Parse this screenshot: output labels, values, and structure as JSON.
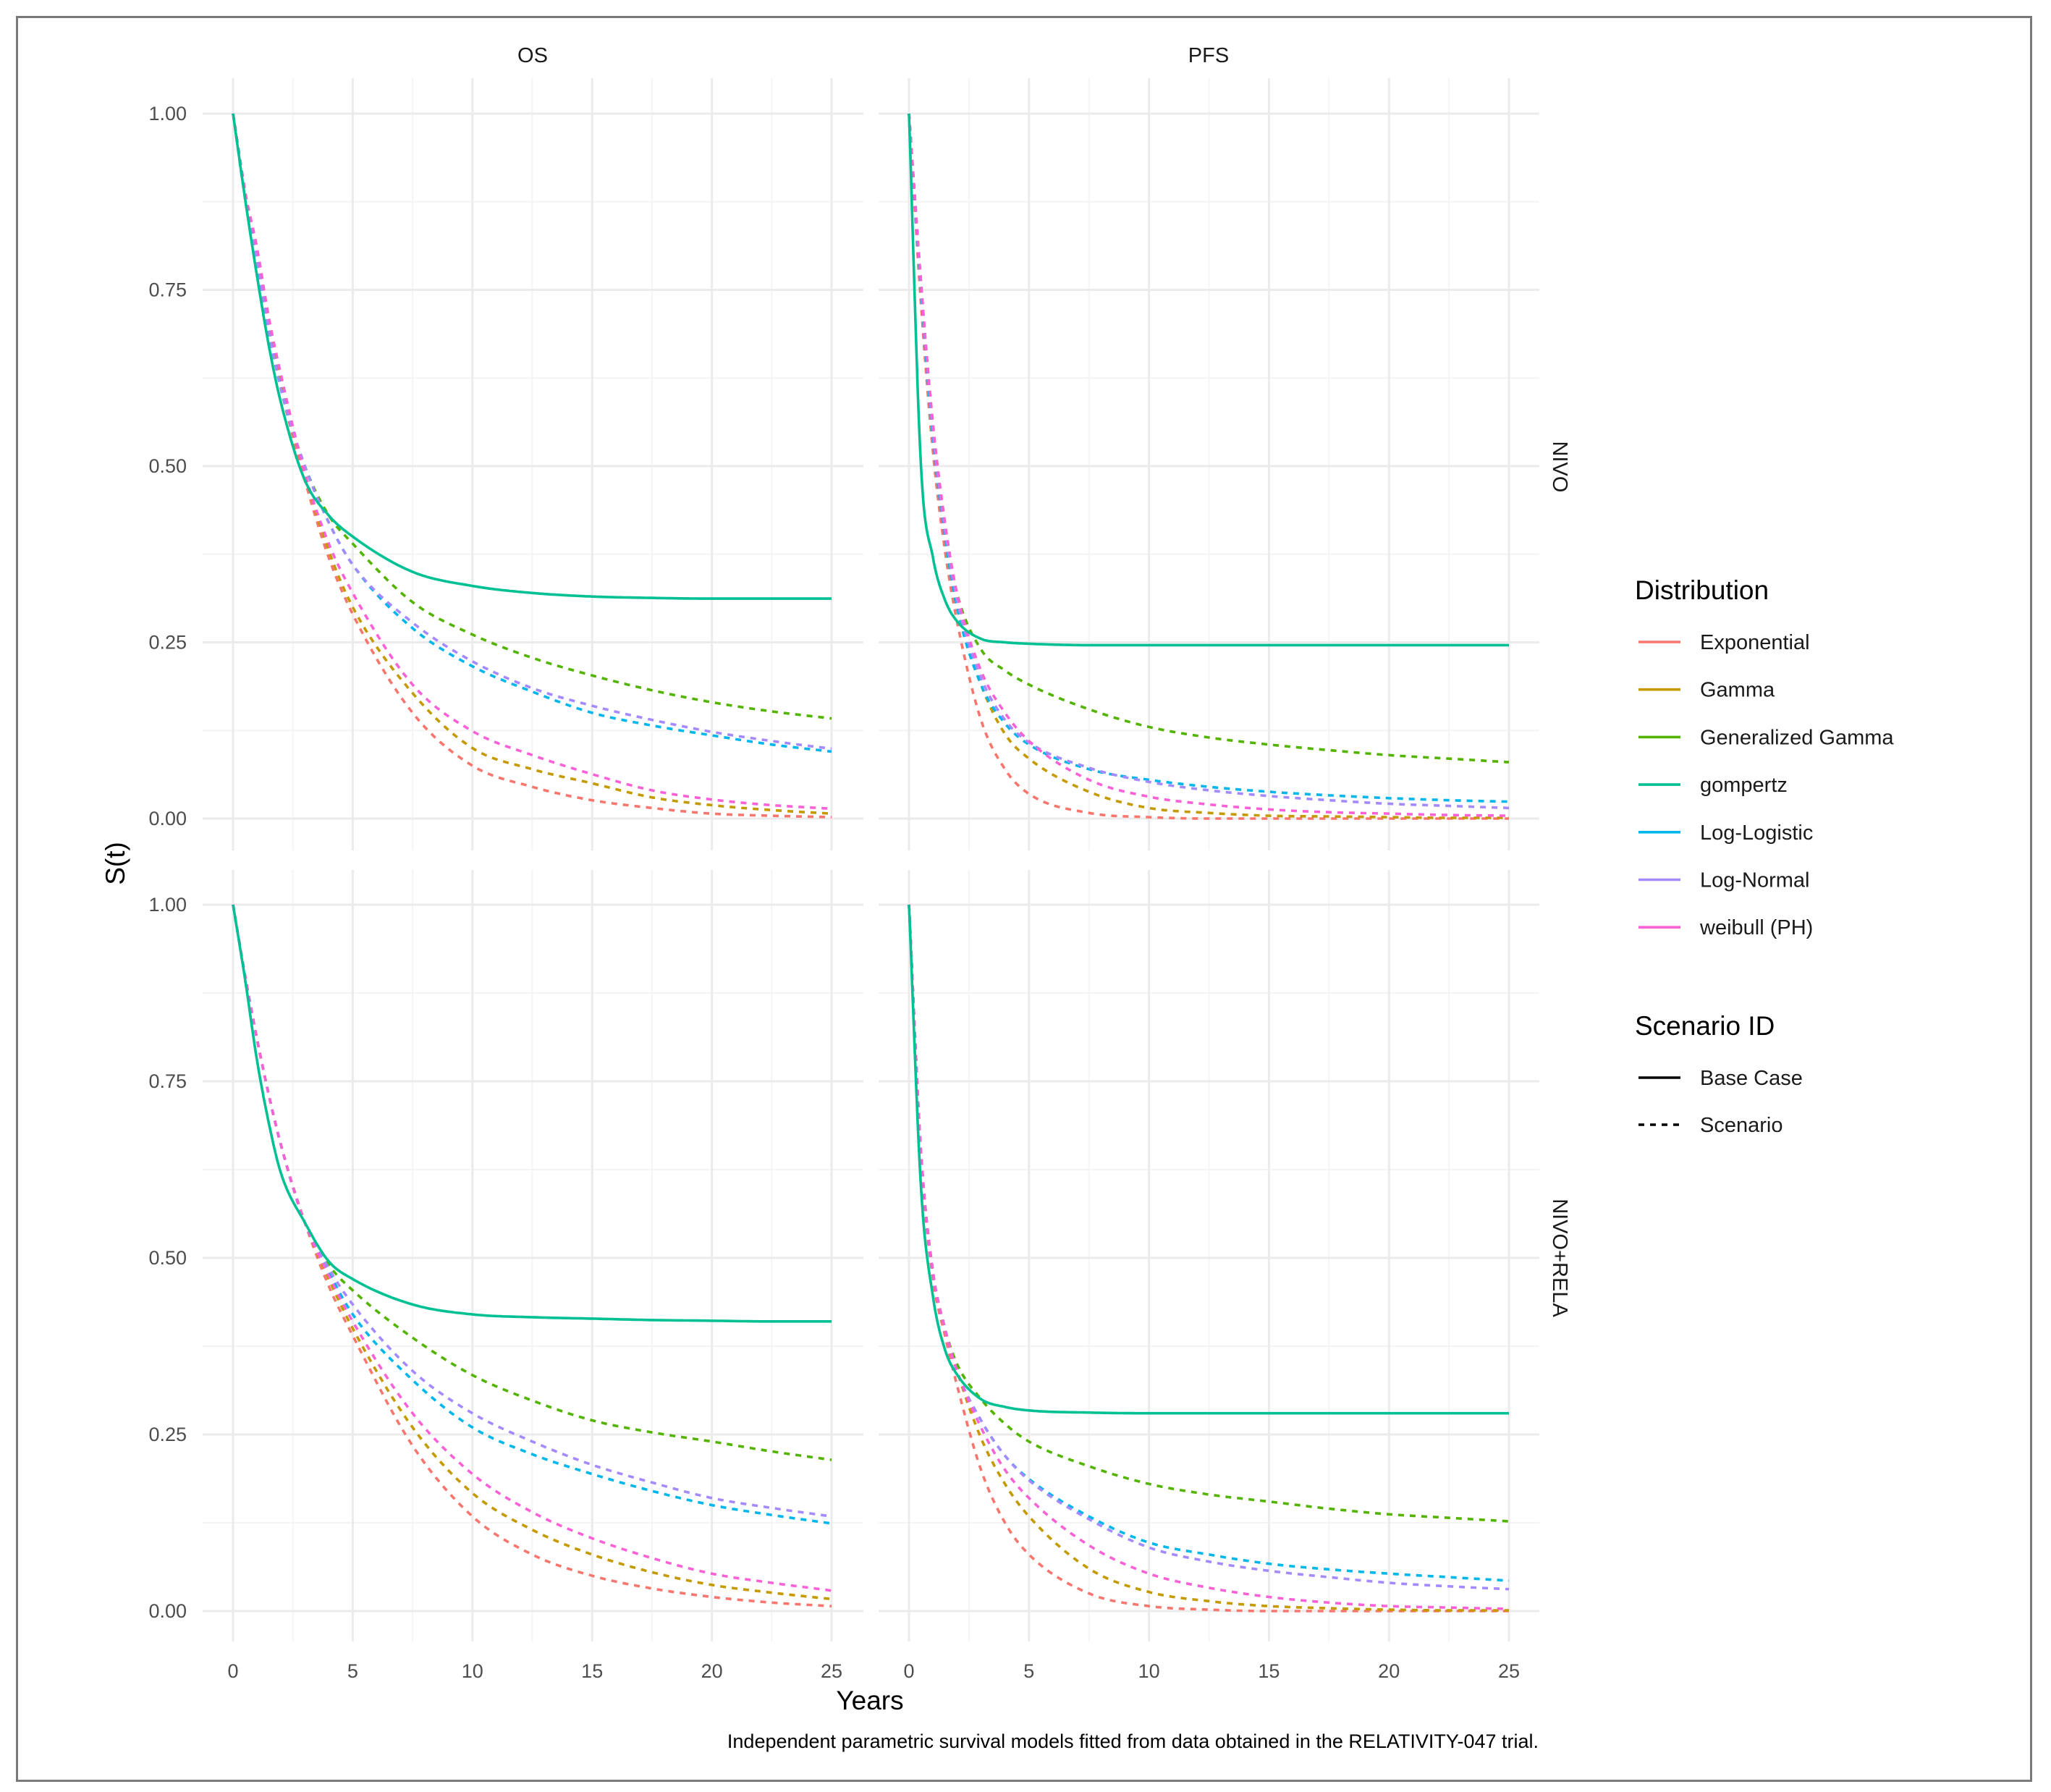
{
  "axes": {
    "xlabel": "Years",
    "ylabel": "S(t)",
    "xlim": [
      0,
      25
    ],
    "ylim": [
      0,
      1
    ],
    "x_ticks": [
      "0",
      "5",
      "10",
      "15",
      "20",
      "25"
    ],
    "y_ticks": [
      "0.00",
      "0.25",
      "0.50",
      "0.75",
      "1.00"
    ],
    "grid": true
  },
  "facets": {
    "columns": [
      "OS",
      "PFS"
    ],
    "rows": [
      "NIVO",
      "NIVO+RELA"
    ]
  },
  "legend": {
    "placement": "right",
    "distribution_title": "Distribution",
    "distribution_items": [
      {
        "label": "Exponential",
        "color": "#F8766D"
      },
      {
        "label": "Gamma",
        "color": "#C49A00"
      },
      {
        "label": "Generalized Gamma",
        "color": "#53B400"
      },
      {
        "label": "gompertz",
        "color": "#00C094"
      },
      {
        "label": "Log-Logistic",
        "color": "#00B6EB"
      },
      {
        "label": "Log-Normal",
        "color": "#A58AFF"
      },
      {
        "label": "weibull (PH)",
        "color": "#FB61D7"
      }
    ],
    "scenario_title": "Scenario ID",
    "scenario_items": [
      {
        "label": "Base Case",
        "linetype": "solid"
      },
      {
        "label": "Scenario",
        "linetype": "dashed"
      }
    ]
  },
  "caption": "Independent parametric survival models fitted from data obtained in the RELATIVITY-047 trial.",
  "chart_data": [
    {
      "type": "line",
      "column": "OS",
      "row": "NIVO",
      "x": [
        0,
        0.5,
        1,
        1.5,
        2,
        3,
        4,
        5,
        7.5,
        10,
        12.5,
        15,
        17.5,
        20,
        22.5,
        25
      ],
      "series": [
        {
          "name": "Exponential",
          "scenario": "Scenario",
          "values": [
            1,
            0.88,
            0.78,
            0.69,
            0.61,
            0.48,
            0.37,
            0.29,
            0.15,
            0.075,
            0.045,
            0.026,
            0.015,
            0.007,
            0.004,
            0.002
          ]
        },
        {
          "name": "Gamma",
          "scenario": "Scenario",
          "values": [
            1,
            0.89,
            0.8,
            0.7,
            0.62,
            0.49,
            0.38,
            0.3,
            0.178,
            0.1,
            0.07,
            0.05,
            0.03,
            0.019,
            0.012,
            0.007
          ]
        },
        {
          "name": "Generalized Gamma",
          "scenario": "Scenario",
          "values": [
            1,
            0.89,
            0.79,
            0.69,
            0.61,
            0.5,
            0.43,
            0.39,
            0.307,
            0.261,
            0.228,
            0.203,
            0.182,
            0.165,
            0.152,
            0.142
          ]
        },
        {
          "name": "gompertz",
          "scenario": "Base Case",
          "values": [
            1,
            0.88,
            0.77,
            0.67,
            0.59,
            0.48,
            0.43,
            0.4,
            0.35,
            0.33,
            0.32,
            0.315,
            0.313,
            0.312,
            0.312,
            0.312
          ]
        },
        {
          "name": "Log-Logistic",
          "scenario": "Scenario",
          "values": [
            1,
            0.89,
            0.79,
            0.69,
            0.61,
            0.5,
            0.42,
            0.36,
            0.27,
            0.216,
            0.18,
            0.15,
            0.132,
            0.118,
            0.105,
            0.095
          ]
        },
        {
          "name": "Log-Normal",
          "scenario": "Scenario",
          "values": [
            1,
            0.89,
            0.79,
            0.69,
            0.61,
            0.5,
            0.42,
            0.36,
            0.278,
            0.223,
            0.185,
            0.16,
            0.14,
            0.123,
            0.11,
            0.099
          ]
        },
        {
          "name": "weibull (PH)",
          "scenario": "Scenario",
          "values": [
            1,
            0.89,
            0.81,
            0.71,
            0.63,
            0.49,
            0.39,
            0.32,
            0.19,
            0.124,
            0.09,
            0.063,
            0.04,
            0.027,
            0.019,
            0.014
          ]
        }
      ]
    },
    {
      "type": "line",
      "column": "PFS",
      "row": "NIVO",
      "x": [
        0,
        0.5,
        1,
        1.5,
        2,
        3,
        4,
        5,
        7.5,
        10,
        12.5,
        15,
        17.5,
        20,
        22.5,
        25
      ],
      "series": [
        {
          "name": "Exponential",
          "scenario": "Scenario",
          "values": [
            1,
            0.73,
            0.52,
            0.38,
            0.28,
            0.14,
            0.07,
            0.035,
            0.008,
            0.002,
            0,
            0,
            0,
            0,
            0,
            0
          ]
        },
        {
          "name": "Gamma",
          "scenario": "Scenario",
          "values": [
            1,
            0.76,
            0.55,
            0.4,
            0.3,
            0.19,
            0.12,
            0.085,
            0.038,
            0.015,
            0.008,
            0.004,
            0.003,
            0.002,
            0.001,
            0.001
          ]
        },
        {
          "name": "Generalized Gamma",
          "scenario": "Scenario",
          "values": [
            1,
            0.76,
            0.55,
            0.41,
            0.32,
            0.24,
            0.21,
            0.19,
            0.155,
            0.13,
            0.115,
            0.105,
            0.097,
            0.09,
            0.085,
            0.08
          ]
        },
        {
          "name": "gompertz",
          "scenario": "Base Case",
          "values": [
            1,
            0.5,
            0.37,
            0.31,
            0.28,
            0.255,
            0.25,
            0.248,
            0.246,
            0.246,
            0.246,
            0.246,
            0.246,
            0.246,
            0.246,
            0.246
          ]
        },
        {
          "name": "Log-Logistic",
          "scenario": "Scenario",
          "values": [
            1,
            0.75,
            0.54,
            0.4,
            0.3,
            0.19,
            0.135,
            0.105,
            0.07,
            0.055,
            0.045,
            0.038,
            0.033,
            0.029,
            0.026,
            0.024
          ]
        },
        {
          "name": "Log-Normal",
          "scenario": "Scenario",
          "values": [
            1,
            0.76,
            0.55,
            0.41,
            0.31,
            0.2,
            0.14,
            0.108,
            0.072,
            0.052,
            0.04,
            0.032,
            0.026,
            0.021,
            0.018,
            0.015
          ]
        },
        {
          "name": "weibull (PH)",
          "scenario": "Scenario",
          "values": [
            1,
            0.76,
            0.56,
            0.42,
            0.32,
            0.21,
            0.15,
            0.11,
            0.055,
            0.031,
            0.02,
            0.013,
            0.009,
            0.007,
            0.005,
            0.004
          ]
        }
      ]
    },
    {
      "type": "line",
      "column": "OS",
      "row": "NIVO+RELA",
      "x": [
        0,
        0.5,
        1,
        1.5,
        2,
        3,
        4,
        5,
        7.5,
        10,
        12.5,
        15,
        17.5,
        20,
        22.5,
        25
      ],
      "series": [
        {
          "name": "Exponential",
          "scenario": "Scenario",
          "values": [
            1,
            0.9,
            0.81,
            0.73,
            0.66,
            0.55,
            0.46,
            0.39,
            0.234,
            0.134,
            0.08,
            0.05,
            0.032,
            0.02,
            0.012,
            0.007
          ]
        },
        {
          "name": "Gamma",
          "scenario": "Scenario",
          "values": [
            1,
            0.9,
            0.81,
            0.73,
            0.66,
            0.55,
            0.47,
            0.4,
            0.26,
            0.167,
            0.115,
            0.08,
            0.055,
            0.037,
            0.026,
            0.017
          ]
        },
        {
          "name": "Generalized Gamma",
          "scenario": "Scenario",
          "values": [
            1,
            0.9,
            0.81,
            0.73,
            0.66,
            0.55,
            0.49,
            0.454,
            0.387,
            0.334,
            0.298,
            0.27,
            0.253,
            0.24,
            0.226,
            0.214
          ]
        },
        {
          "name": "gompertz",
          "scenario": "Base Case",
          "values": [
            1,
            0.895,
            0.78,
            0.69,
            0.62,
            0.55,
            0.495,
            0.47,
            0.434,
            0.42,
            0.416,
            0.414,
            0.412,
            0.411,
            0.41,
            0.41
          ]
        },
        {
          "name": "Log-Logistic",
          "scenario": "Scenario",
          "values": [
            1,
            0.9,
            0.81,
            0.73,
            0.66,
            0.55,
            0.48,
            0.42,
            0.327,
            0.26,
            0.222,
            0.194,
            0.17,
            0.15,
            0.136,
            0.124
          ]
        },
        {
          "name": "Log-Normal",
          "scenario": "Scenario",
          "values": [
            1,
            0.9,
            0.81,
            0.73,
            0.66,
            0.55,
            0.485,
            0.434,
            0.34,
            0.28,
            0.24,
            0.207,
            0.182,
            0.16,
            0.146,
            0.134
          ]
        },
        {
          "name": "weibull (PH)",
          "scenario": "Scenario",
          "values": [
            1,
            0.9,
            0.81,
            0.73,
            0.66,
            0.55,
            0.475,
            0.41,
            0.28,
            0.194,
            0.14,
            0.103,
            0.075,
            0.053,
            0.04,
            0.029
          ]
        }
      ]
    },
    {
      "type": "line",
      "column": "PFS",
      "row": "NIVO+RELA",
      "x": [
        0,
        0.5,
        1,
        1.5,
        2,
        3,
        4,
        5,
        7.5,
        10,
        12.5,
        15,
        17.5,
        20,
        22.5,
        25
      ],
      "series": [
        {
          "name": "Exponential",
          "scenario": "Scenario",
          "values": [
            1,
            0.64,
            0.47,
            0.39,
            0.32,
            0.2,
            0.125,
            0.08,
            0.025,
            0.007,
            0.002,
            0,
            0,
            0,
            0,
            0
          ]
        },
        {
          "name": "Gamma",
          "scenario": "Scenario",
          "values": [
            1,
            0.65,
            0.48,
            0.4,
            0.34,
            0.245,
            0.18,
            0.134,
            0.06,
            0.027,
            0.014,
            0.007,
            0.004,
            0.002,
            0.001,
            0.001
          ]
        },
        {
          "name": "Generalized Gamma",
          "scenario": "Scenario",
          "values": [
            1,
            0.65,
            0.48,
            0.4,
            0.35,
            0.3,
            0.265,
            0.24,
            0.205,
            0.18,
            0.165,
            0.155,
            0.145,
            0.137,
            0.132,
            0.127
          ]
        },
        {
          "name": "gompertz",
          "scenario": "Base Case",
          "values": [
            1,
            0.6,
            0.445,
            0.37,
            0.335,
            0.3,
            0.289,
            0.284,
            0.281,
            0.28,
            0.28,
            0.28,
            0.28,
            0.28,
            0.28,
            0.28
          ]
        },
        {
          "name": "Log-Logistic",
          "scenario": "Scenario",
          "values": [
            1,
            0.65,
            0.48,
            0.4,
            0.34,
            0.27,
            0.22,
            0.187,
            0.134,
            0.097,
            0.08,
            0.067,
            0.059,
            0.053,
            0.048,
            0.043
          ]
        },
        {
          "name": "Log-Normal",
          "scenario": "Scenario",
          "values": [
            1,
            0.65,
            0.48,
            0.4,
            0.34,
            0.27,
            0.22,
            0.185,
            0.13,
            0.09,
            0.07,
            0.057,
            0.048,
            0.04,
            0.035,
            0.031
          ]
        },
        {
          "name": "weibull (PH)",
          "scenario": "Scenario",
          "values": [
            1,
            0.65,
            0.48,
            0.4,
            0.34,
            0.26,
            0.2,
            0.16,
            0.093,
            0.053,
            0.033,
            0.02,
            0.012,
            0.007,
            0.005,
            0.003
          ]
        }
      ]
    }
  ]
}
